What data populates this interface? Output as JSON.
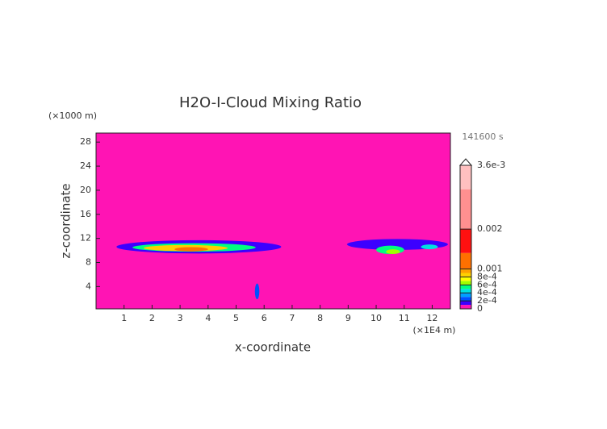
{
  "chart_data": {
    "type": "contour",
    "title": "H2O-I-Cloud Mixing Ratio",
    "subtitle": "141600 s",
    "x_label": "x-coordinate",
    "y_label": "z-coordinate",
    "x_unit": "(×1E4 m)",
    "y_unit": "(×1000 m)",
    "xlim": [
      0,
      12.65
    ],
    "xticks": [
      1,
      2,
      3,
      4,
      5,
      6,
      7,
      8,
      9,
      10,
      11,
      12
    ],
    "ylim": [
      0.3,
      29.5
    ],
    "yticks": [
      4,
      8,
      12,
      16,
      20,
      24,
      28
    ],
    "colorbar": {
      "lim": [
        0,
        0.0036
      ],
      "ticks": [
        0,
        {
          "value": 0.0002,
          "label": "2e-4"
        },
        {
          "value": 0.0004,
          "label": "4e-4"
        },
        {
          "value": 0.0006,
          "label": "6e-4"
        },
        {
          "value": 0.0008,
          "label": "8e-4"
        },
        0.001,
        0.002,
        {
          "value": 0.0036,
          "label": "3.6e-3"
        }
      ],
      "bands": [
        {
          "from": 0,
          "to": 0.0001,
          "color": "#ff14b4"
        },
        {
          "from": 0.0001,
          "to": 0.0002,
          "color": "#3c00ff"
        },
        {
          "from": 0.0002,
          "to": 0.0003,
          "color": "#0050ff"
        },
        {
          "from": 0.0003,
          "to": 0.0004,
          "color": "#00a0ff"
        },
        {
          "from": 0.0004,
          "to": 0.0005,
          "color": "#00e0e0"
        },
        {
          "from": 0.0005,
          "to": 0.0006,
          "color": "#00ff80"
        },
        {
          "from": 0.0006,
          "to": 0.0007,
          "color": "#a0ff00"
        },
        {
          "from": 0.0007,
          "to": 0.0008,
          "color": "#ffff00"
        },
        {
          "from": 0.0008,
          "to": 0.0009,
          "color": "#ffd000"
        },
        {
          "from": 0.0009,
          "to": 0.001,
          "color": "#ffa000"
        },
        {
          "from": 0.001,
          "to": 0.0014,
          "color": "#ff7000"
        },
        {
          "from": 0.0014,
          "to": 0.002,
          "color": "#ff1010"
        },
        {
          "from": 0.002,
          "to": 0.003,
          "color": "#ff9090"
        },
        {
          "from": 0.003,
          "to": 0.0036,
          "color": "#ffc0c0"
        }
      ]
    },
    "regions": [
      {
        "x": 3.67,
        "z": 10.6,
        "rx": 2.94,
        "rz": 1.1,
        "value": 0.0001
      },
      {
        "x": 3.5,
        "z": 10.5,
        "rx": 2.2,
        "rz": 0.7,
        "value": 0.0005
      },
      {
        "x": 3.2,
        "z": 10.4,
        "rx": 1.5,
        "rz": 0.5,
        "value": 0.0008
      },
      {
        "x": 3.4,
        "z": 10.2,
        "rx": 0.6,
        "rz": 0.35,
        "value": 0.0012
      },
      {
        "x": 10.76,
        "z": 11,
        "rx": 1.8,
        "rz": 0.9,
        "value": 0.0001
      },
      {
        "x": 10.5,
        "z": 10.1,
        "rx": 0.5,
        "rz": 0.7,
        "value": 0.0005
      },
      {
        "x": 10.6,
        "z": 9.8,
        "rx": 0.25,
        "rz": 0.4,
        "value": 0.0006
      },
      {
        "x": 11.9,
        "z": 10.6,
        "rx": 0.3,
        "rz": 0.4,
        "value": 0.0004
      },
      {
        "x": 5.75,
        "z": 3.2,
        "rx": 0.08,
        "rz": 1.3,
        "value": 0.0002
      }
    ]
  }
}
